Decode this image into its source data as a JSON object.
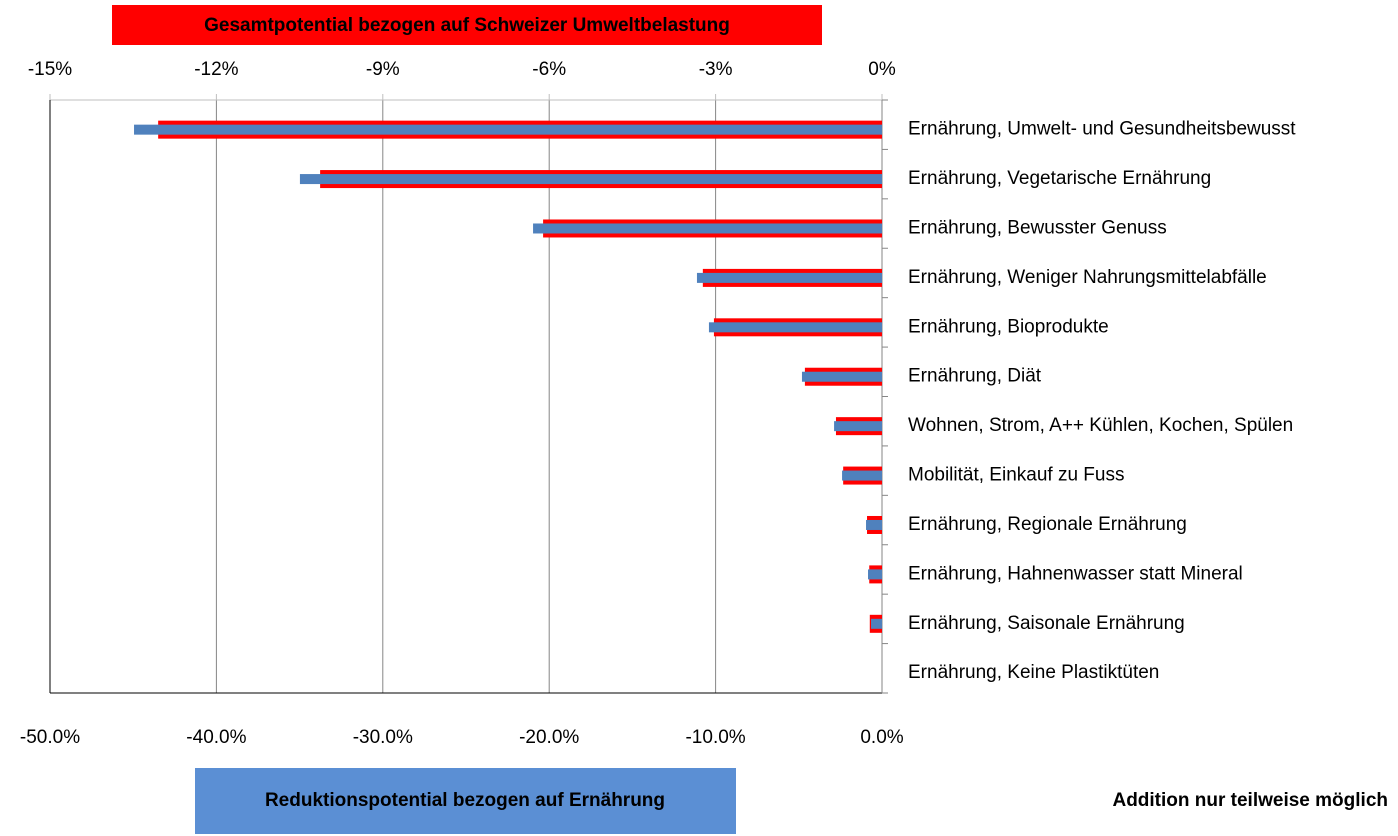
{
  "chart_data": {
    "type": "hbar",
    "x2label": "Gesamtpotential bezogen auf Schweizer Umweltbelastung",
    "xlabel": "Reduktionspotential bezogen auf Ernährung",
    "annotation": "Addition nur teilweise möglich",
    "categories": [
      "Ernährung, Umwelt- und Gesundheitsbewusst",
      "Ernährung, Vegetarische Ernährung",
      "Ernährung, Bewusster Genuss",
      "Ernährung, Weniger Nahrungsmittelabfälle",
      "Ernährung, Bioprodukte",
      "Ernährung, Diät",
      "Wohnen, Strom, A++ Kühlen, Kochen, Spülen",
      "Mobilität, Einkauf zu Fuss",
      "Ernährung, Regionale Ernährung",
      "Ernährung, Hahnenwasser statt Mineral",
      "Ernährung, Saisonale Ernährung",
      "Ernährung, Keine Plastiktüten"
    ],
    "series": [
      {
        "name": "Gesamtpotential bezogen auf Schweizer Umweltbelastung",
        "color": "#ff0000",
        "axis": "x2",
        "values": [
          -13.05,
          -10.13,
          -6.11,
          -3.23,
          -3.03,
          -1.39,
          -0.83,
          -0.7,
          -0.27,
          -0.23,
          -0.22,
          0
        ]
      },
      {
        "name": "Reduktionspotential bezogen auf Ernährung",
        "color": "#4f81bd",
        "axis": "x",
        "values": [
          -44.95,
          -34.98,
          -20.97,
          -11.12,
          -10.4,
          -4.81,
          -2.88,
          -2.4,
          -0.96,
          -0.84,
          -0.66,
          0
        ]
      }
    ],
    "xlim": [
      -50,
      0
    ],
    "xticks": [
      {
        "value": -50,
        "label": "-50.0%"
      },
      {
        "value": -40,
        "label": "-40.0%"
      },
      {
        "value": -30,
        "label": "-30.0%"
      },
      {
        "value": -20,
        "label": "-20.0%"
      },
      {
        "value": -10,
        "label": "-10.0%"
      },
      {
        "value": 0,
        "label": "0.0%"
      }
    ],
    "x2lim": [
      -15,
      0
    ],
    "x2ticks": [
      {
        "value": -15,
        "label": "-15%"
      },
      {
        "value": -12,
        "label": "-12%"
      },
      {
        "value": -9,
        "label": "-9%"
      },
      {
        "value": -6,
        "label": "-6%"
      },
      {
        "value": -3,
        "label": "-3%"
      },
      {
        "value": 0,
        "label": "0%"
      }
    ],
    "grid": true
  }
}
